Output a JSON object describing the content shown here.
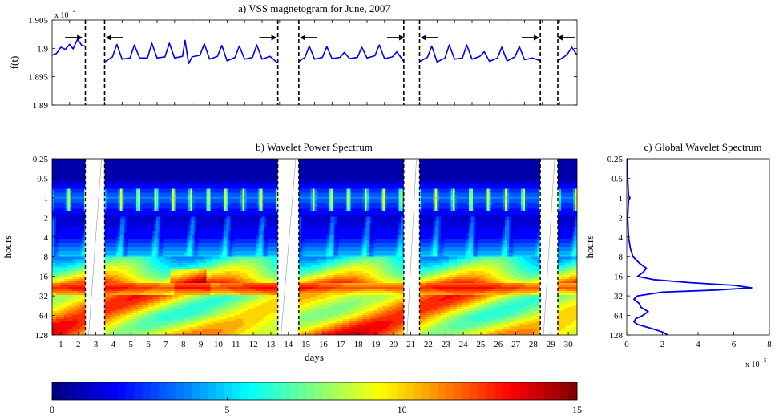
{
  "chart_data": [
    {
      "type": "line",
      "title": "a) VSS magnetogram for June, 2007",
      "ylabel": "f(t)",
      "y_scale_note": "x 10^4",
      "xlim": [
        0,
        30
      ],
      "ylim": [
        1.89,
        1.905
      ],
      "ytick_labels": [
        "1.905",
        "1.9",
        "1.895",
        "1.89"
      ],
      "ytick_values": [
        1.905,
        1.9,
        1.895,
        1.89
      ],
      "gap_markers_day": [
        1.9,
        3.0,
        12.9,
        14.1,
        20.1,
        21.0,
        27.9,
        28.9
      ],
      "direction_arrows": [
        {
          "day": 1.2,
          "direction": "right"
        },
        {
          "day": 3.6,
          "direction": "left"
        },
        {
          "day": 12.3,
          "direction": "right"
        },
        {
          "day": 14.7,
          "direction": "left"
        },
        {
          "day": 19.6,
          "direction": "right"
        },
        {
          "day": 21.6,
          "direction": "left"
        },
        {
          "day": 27.3,
          "direction": "right"
        },
        {
          "day": 29.4,
          "direction": "left"
        }
      ],
      "segments_days": [
        [
          0.0,
          1.9
        ],
        [
          3.0,
          12.9
        ],
        [
          14.1,
          20.1
        ],
        [
          21.0,
          27.9
        ],
        [
          28.9,
          30.0
        ]
      ],
      "series": [
        {
          "color": "#0000ee",
          "x": [
            0.0,
            0.25,
            0.5,
            0.75,
            1.0,
            1.2,
            1.45,
            1.7,
            1.9,
            3.0,
            3.45,
            3.7,
            4.0,
            4.45,
            4.7,
            5.0,
            5.45,
            5.7,
            6.0,
            6.45,
            6.7,
            7.0,
            7.45,
            7.6,
            7.8,
            8.0,
            8.45,
            8.7,
            9.0,
            9.45,
            9.7,
            10.0,
            10.45,
            10.7,
            11.0,
            11.45,
            11.7,
            12.0,
            12.45,
            12.9,
            14.1,
            14.45,
            14.7,
            15.0,
            15.45,
            15.7,
            16.0,
            16.45,
            16.7,
            17.0,
            17.45,
            17.7,
            18.0,
            18.45,
            18.7,
            19.0,
            19.45,
            19.7,
            20.1,
            21.0,
            21.45,
            21.7,
            22.0,
            22.45,
            22.7,
            23.0,
            23.45,
            23.7,
            24.0,
            24.45,
            24.7,
            25.0,
            25.45,
            25.7,
            26.0,
            26.45,
            26.7,
            27.0,
            27.45,
            27.9,
            28.9,
            29.3,
            29.45,
            29.7,
            30.0
          ],
          "values": [
            1.8988,
            1.8991,
            1.9002,
            1.8998,
            1.9007,
            1.8999,
            1.9016,
            1.9005,
            1.9004,
            1.8976,
            1.8985,
            1.9007,
            1.8981,
            1.8983,
            1.9006,
            1.8983,
            1.8983,
            1.9009,
            1.8983,
            1.8985,
            1.9009,
            1.8983,
            1.8986,
            1.9014,
            1.8973,
            1.8985,
            1.8988,
            1.9008,
            1.8981,
            1.8986,
            1.9005,
            1.8978,
            1.8984,
            1.9004,
            1.8981,
            1.8984,
            1.9006,
            1.8981,
            1.8986,
            1.8974,
            1.8977,
            1.8984,
            1.9004,
            1.8981,
            1.8984,
            1.9003,
            1.8982,
            1.8984,
            1.8993,
            1.8982,
            1.8984,
            1.9002,
            1.8983,
            1.8987,
            1.9006,
            1.8982,
            1.8985,
            1.8994,
            1.8977,
            1.8977,
            1.8984,
            1.9004,
            1.8976,
            1.8983,
            1.9006,
            1.8981,
            1.8983,
            1.9006,
            1.8981,
            1.8986,
            1.8994,
            1.8977,
            1.8983,
            1.9002,
            1.8978,
            1.8985,
            1.9003,
            1.898,
            1.8983,
            1.8978,
            1.8978,
            1.8986,
            1.899,
            1.9002,
            1.8988
          ]
        }
      ]
    },
    {
      "type": "heatmap",
      "title": "b) Wavelet Power Spectrum",
      "xlabel": "days",
      "ylabel": "hours",
      "xlim": [
        0,
        30
      ],
      "y_scale": "log2",
      "ytick_labels": [
        "0.25",
        "0.5",
        "1",
        "2",
        "4",
        "8",
        "16",
        "32",
        "64",
        "128"
      ],
      "xtick_labels": [
        "1",
        "2",
        "3",
        "4",
        "5",
        "6",
        "7",
        "8",
        "9",
        "10",
        "11",
        "12",
        "13",
        "14",
        "15",
        "16",
        "17",
        "18",
        "19",
        "20",
        "21",
        "22",
        "23",
        "24",
        "25",
        "26",
        "27",
        "28",
        "29",
        "30"
      ],
      "gaps_days": [
        [
          1.9,
          3.0
        ],
        [
          12.9,
          14.1
        ],
        [
          20.1,
          21.0
        ],
        [
          27.9,
          28.9
        ]
      ],
      "power_profile_by_period_hours": [
        {
          "period": 0.25,
          "power": 0.3
        },
        {
          "period": 0.5,
          "power": 0.6
        },
        {
          "period": 1,
          "power": 3.5
        },
        {
          "period": 2,
          "power": 1.2
        },
        {
          "period": 4,
          "power": 2.0
        },
        {
          "period": 8,
          "power": 5.0
        },
        {
          "period": 16,
          "power": 9.0
        },
        {
          "period": 24,
          "power": 12.5
        },
        {
          "period": 32,
          "power": 9.5
        },
        {
          "period": 64,
          "power": 9.0
        },
        {
          "period": 128,
          "power": 10.5
        }
      ]
    },
    {
      "type": "line",
      "title": "c) Global Wavelet Spectrum",
      "ylabel": "hours",
      "x_scale_note": "x 10^5",
      "xlim": [
        0,
        8
      ],
      "xtick_labels": [
        "0",
        "2",
        "4",
        "6",
        "8"
      ],
      "xtick_values": [
        0,
        2,
        4,
        6,
        8
      ],
      "y_scale": "log2",
      "ytick_labels": [
        "0.25",
        "0.5",
        "1",
        "2",
        "4",
        "8",
        "16",
        "32",
        "64",
        "128"
      ],
      "series": [
        {
          "color": "#0000ee",
          "period_hours": [
            0.25,
            0.5,
            0.9,
            1.0,
            1.1,
            2,
            4,
            6,
            8,
            10,
            12,
            14,
            16,
            18,
            20,
            22,
            24,
            26,
            28,
            32,
            36,
            42,
            48,
            56,
            64,
            72,
            80,
            88,
            100,
            115,
            128
          ],
          "power_x1e5": [
            0.03,
            0.05,
            0.1,
            0.18,
            0.1,
            0.05,
            0.1,
            0.2,
            0.35,
            0.7,
            1.1,
            0.9,
            0.6,
            1.5,
            3.5,
            6.0,
            7.0,
            5.0,
            2.0,
            0.6,
            0.4,
            0.7,
            0.8,
            1.2,
            0.9,
            0.5,
            0.4,
            0.6,
            1.3,
            2.0,
            2.3
          ]
        }
      ]
    },
    {
      "type": "colorbar",
      "tick_labels": [
        "0",
        "5",
        "10",
        "15"
      ],
      "tick_values": [
        0,
        5,
        10,
        15
      ],
      "range": [
        0,
        15
      ],
      "colormap": "jet"
    }
  ]
}
